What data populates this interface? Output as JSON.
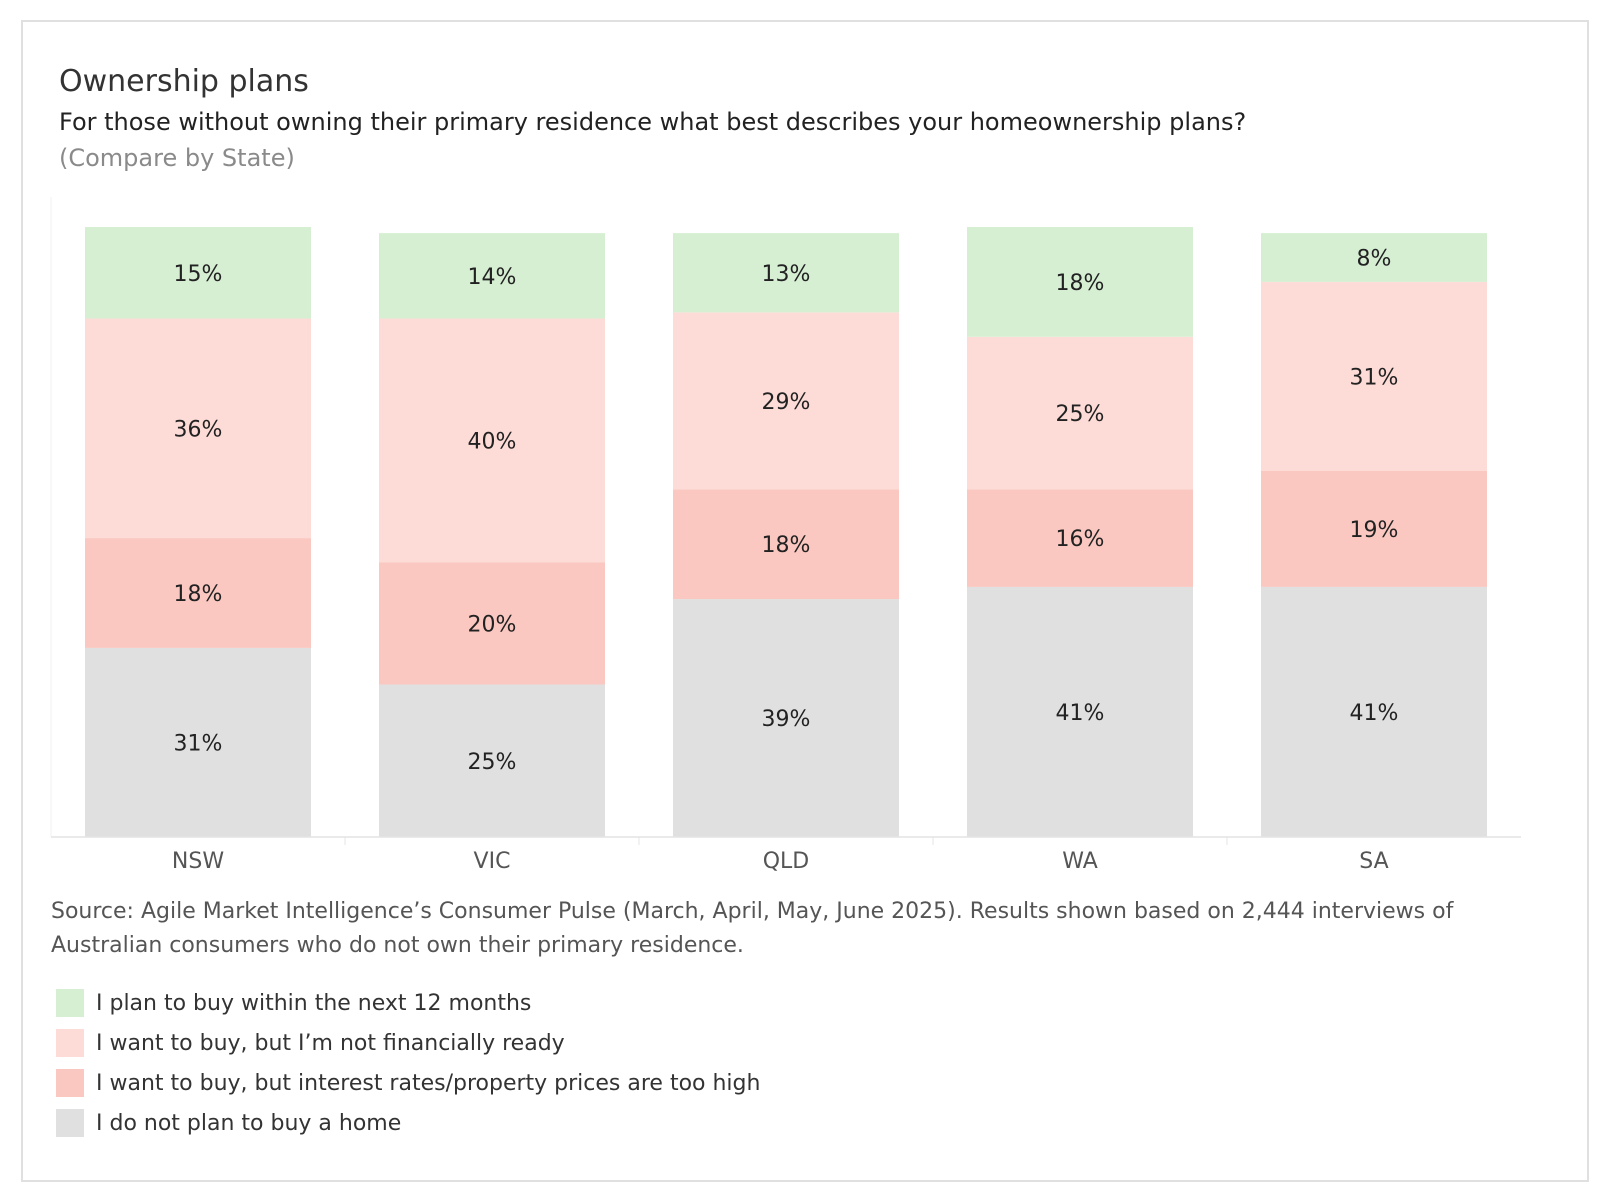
{
  "header": {
    "title": "Ownership plans",
    "subtitle": "For those without owning their primary residence what best describes your homeownership plans?",
    "compare_note": "(Compare by State)"
  },
  "chart_data": {
    "type": "bar",
    "stacked": true,
    "categories": [
      "NSW",
      "VIC",
      "QLD",
      "WA",
      "SA"
    ],
    "series": [
      {
        "name": "I do not plan to buy a home",
        "color": "#e0e0e0",
        "values": [
          31,
          25,
          39,
          41,
          41
        ]
      },
      {
        "name": "I want to buy, but interest rates/property prices are too high",
        "color": "#fac8c0",
        "values": [
          18,
          20,
          18,
          16,
          19
        ]
      },
      {
        "name": "I want to buy, but I’m not financially ready",
        "color": "#fddcd7",
        "values": [
          36,
          40,
          29,
          25,
          31
        ]
      },
      {
        "name": "I plan to buy within the next 12 months",
        "color": "#d6efd3",
        "values": [
          15,
          14,
          13,
          18,
          8
        ]
      }
    ],
    "value_suffix": "%",
    "ylim": [
      0,
      100
    ],
    "grid": false,
    "legend_position": "bottom-left"
  },
  "source_text": "Source: Agile Market Intelligence’s Consumer Pulse (March, April, May, June 2025). Results shown based on 2,444 interviews of Australian consumers who do not own their primary residence.",
  "legend": [
    {
      "label": "I plan to buy within the next 12 months",
      "color": "#d6efd3"
    },
    {
      "label": "I want to buy, but I’m not financially ready",
      "color": "#fddcd7"
    },
    {
      "label": "I want to buy, but interest rates/property prices are too high",
      "color": "#fac8c0"
    },
    {
      "label": "I do not plan to buy a home",
      "color": "#e0e0e0"
    }
  ]
}
